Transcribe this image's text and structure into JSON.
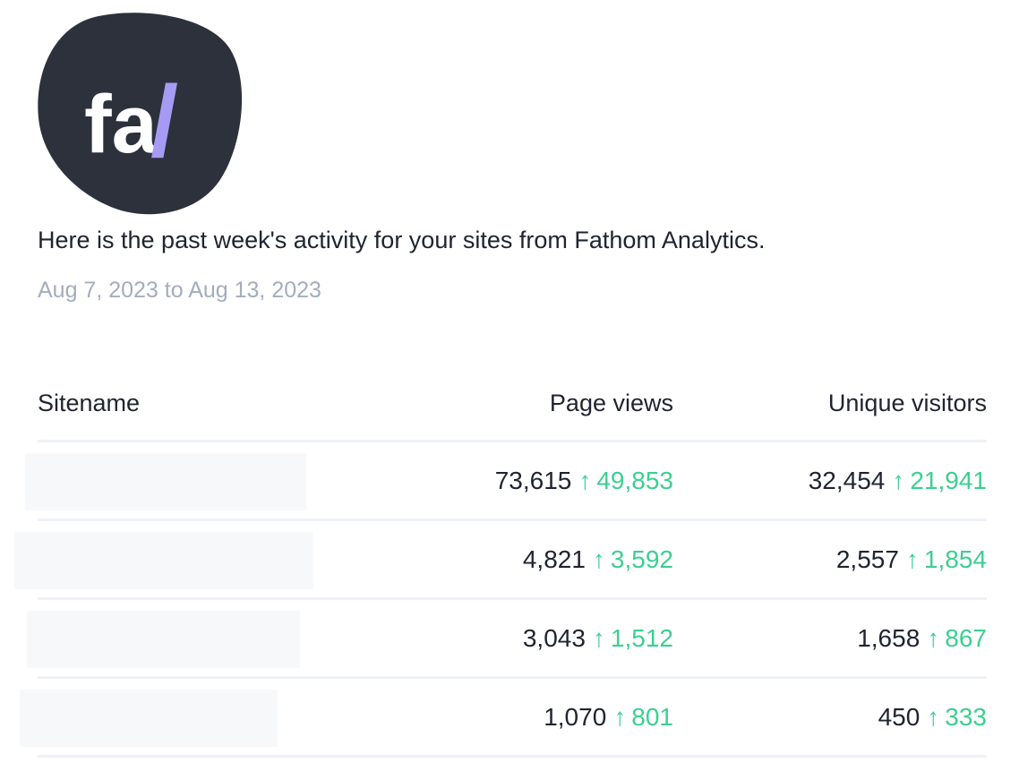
{
  "logo": {
    "text": "fa/",
    "letters": "fa",
    "slash": "/",
    "bg_color": "#2c313b",
    "accent_color": "#a69bf4",
    "icon": "fathom-logo-icon"
  },
  "intro_text": "Here is the past week's activity for your sites from Fathom Analytics.",
  "date_range": "Aug 7, 2023 to Aug 13, 2023",
  "table": {
    "headers": {
      "sitename": "Sitename",
      "page_views": "Page views",
      "unique_visitors": "Unique visitors"
    },
    "rows": [
      {
        "site": "",
        "page_views": "73,615",
        "page_views_delta": "49,853",
        "unique_visitors": "32,454",
        "unique_visitors_delta": "21,941"
      },
      {
        "site": "",
        "page_views": "4,821",
        "page_views_delta": "3,592",
        "unique_visitors": "2,557",
        "unique_visitors_delta": "1,854"
      },
      {
        "site": "",
        "page_views": "3,043",
        "page_views_delta": "1,512",
        "unique_visitors": "1,658",
        "unique_visitors_delta": "867"
      },
      {
        "site": "",
        "page_views": "1,070",
        "page_views_delta": "801",
        "unique_visitors": "450",
        "unique_visitors_delta": "333"
      }
    ]
  },
  "arrow_glyph": "↑",
  "colors": {
    "text": "#1f2430",
    "muted": "#a3adbd",
    "positive": "#3ccf91",
    "divider": "#eef1f6"
  }
}
